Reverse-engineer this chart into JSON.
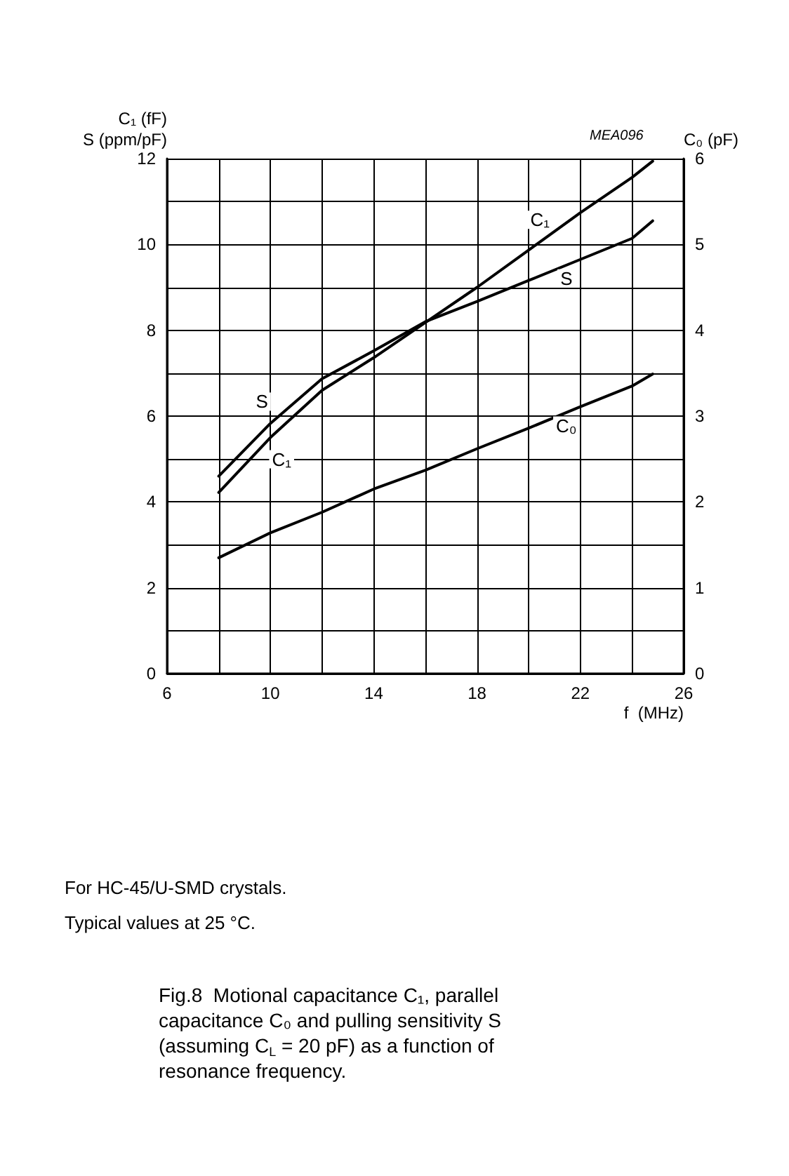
{
  "chart_data": {
    "type": "line",
    "xlabel": "f  (MHz)",
    "ylabel": "C₁ (fF)\nS (ppm/pF)",
    "y2label": "C₀ (pF)",
    "x": [
      8,
      10,
      12,
      14,
      16,
      18,
      20,
      22,
      24,
      24.8
    ],
    "series": [
      {
        "name": "C₁",
        "color": "#000000",
        "values": [
          4.22,
          5.5,
          6.6,
          7.36,
          8.18,
          9.0,
          9.87,
          10.74,
          11.56,
          11.94
        ]
      },
      {
        "name": "S",
        "color": "#000000",
        "values": [
          4.6,
          5.83,
          6.87,
          7.52,
          8.2,
          8.67,
          9.16,
          9.65,
          10.14,
          10.55
        ]
      },
      {
        "name": "C₀",
        "color": "#000000",
        "axis": "y2",
        "values": [
          1.35,
          1.64,
          1.88,
          2.15,
          2.37,
          2.62,
          2.86,
          3.11,
          3.35,
          3.49
        ]
      }
    ],
    "xlim": [
      6,
      26
    ],
    "xticks": [
      6,
      {
        "value": 8,
        "label": null
      },
      10,
      {
        "value": 12,
        "label": null
      },
      14,
      {
        "value": 16,
        "label": null
      },
      18,
      {
        "value": 20,
        "label": null
      },
      22,
      {
        "value": 24,
        "label": null
      },
      26
    ],
    "ylim": [
      0,
      12
    ],
    "yticks": [
      0,
      {
        "value": 1,
        "label": null
      },
      2,
      {
        "value": 3,
        "label": null
      },
      4,
      {
        "value": 5,
        "label": null
      },
      6,
      {
        "value": 7,
        "label": null
      },
      8,
      {
        "value": 9,
        "label": null
      },
      10,
      {
        "value": 11,
        "label": null
      },
      12
    ],
    "y2lim": [
      0,
      6
    ],
    "y2ticks": [
      0,
      1,
      2,
      3,
      4,
      5,
      6
    ],
    "grid": true,
    "legend": false,
    "marker": "none",
    "line_style": "solid",
    "annotations": [
      "MEA096",
      "For HC-45/U-SMD crystals.",
      "Typical values at 25 °C.",
      "Fig.8  Motional capacitance C₁, parallel capacitance C₀ and pulling sensitivity S (assuming C$_{L}$ = 20 pF) as a function of resonance frequency."
    ]
  }
}
